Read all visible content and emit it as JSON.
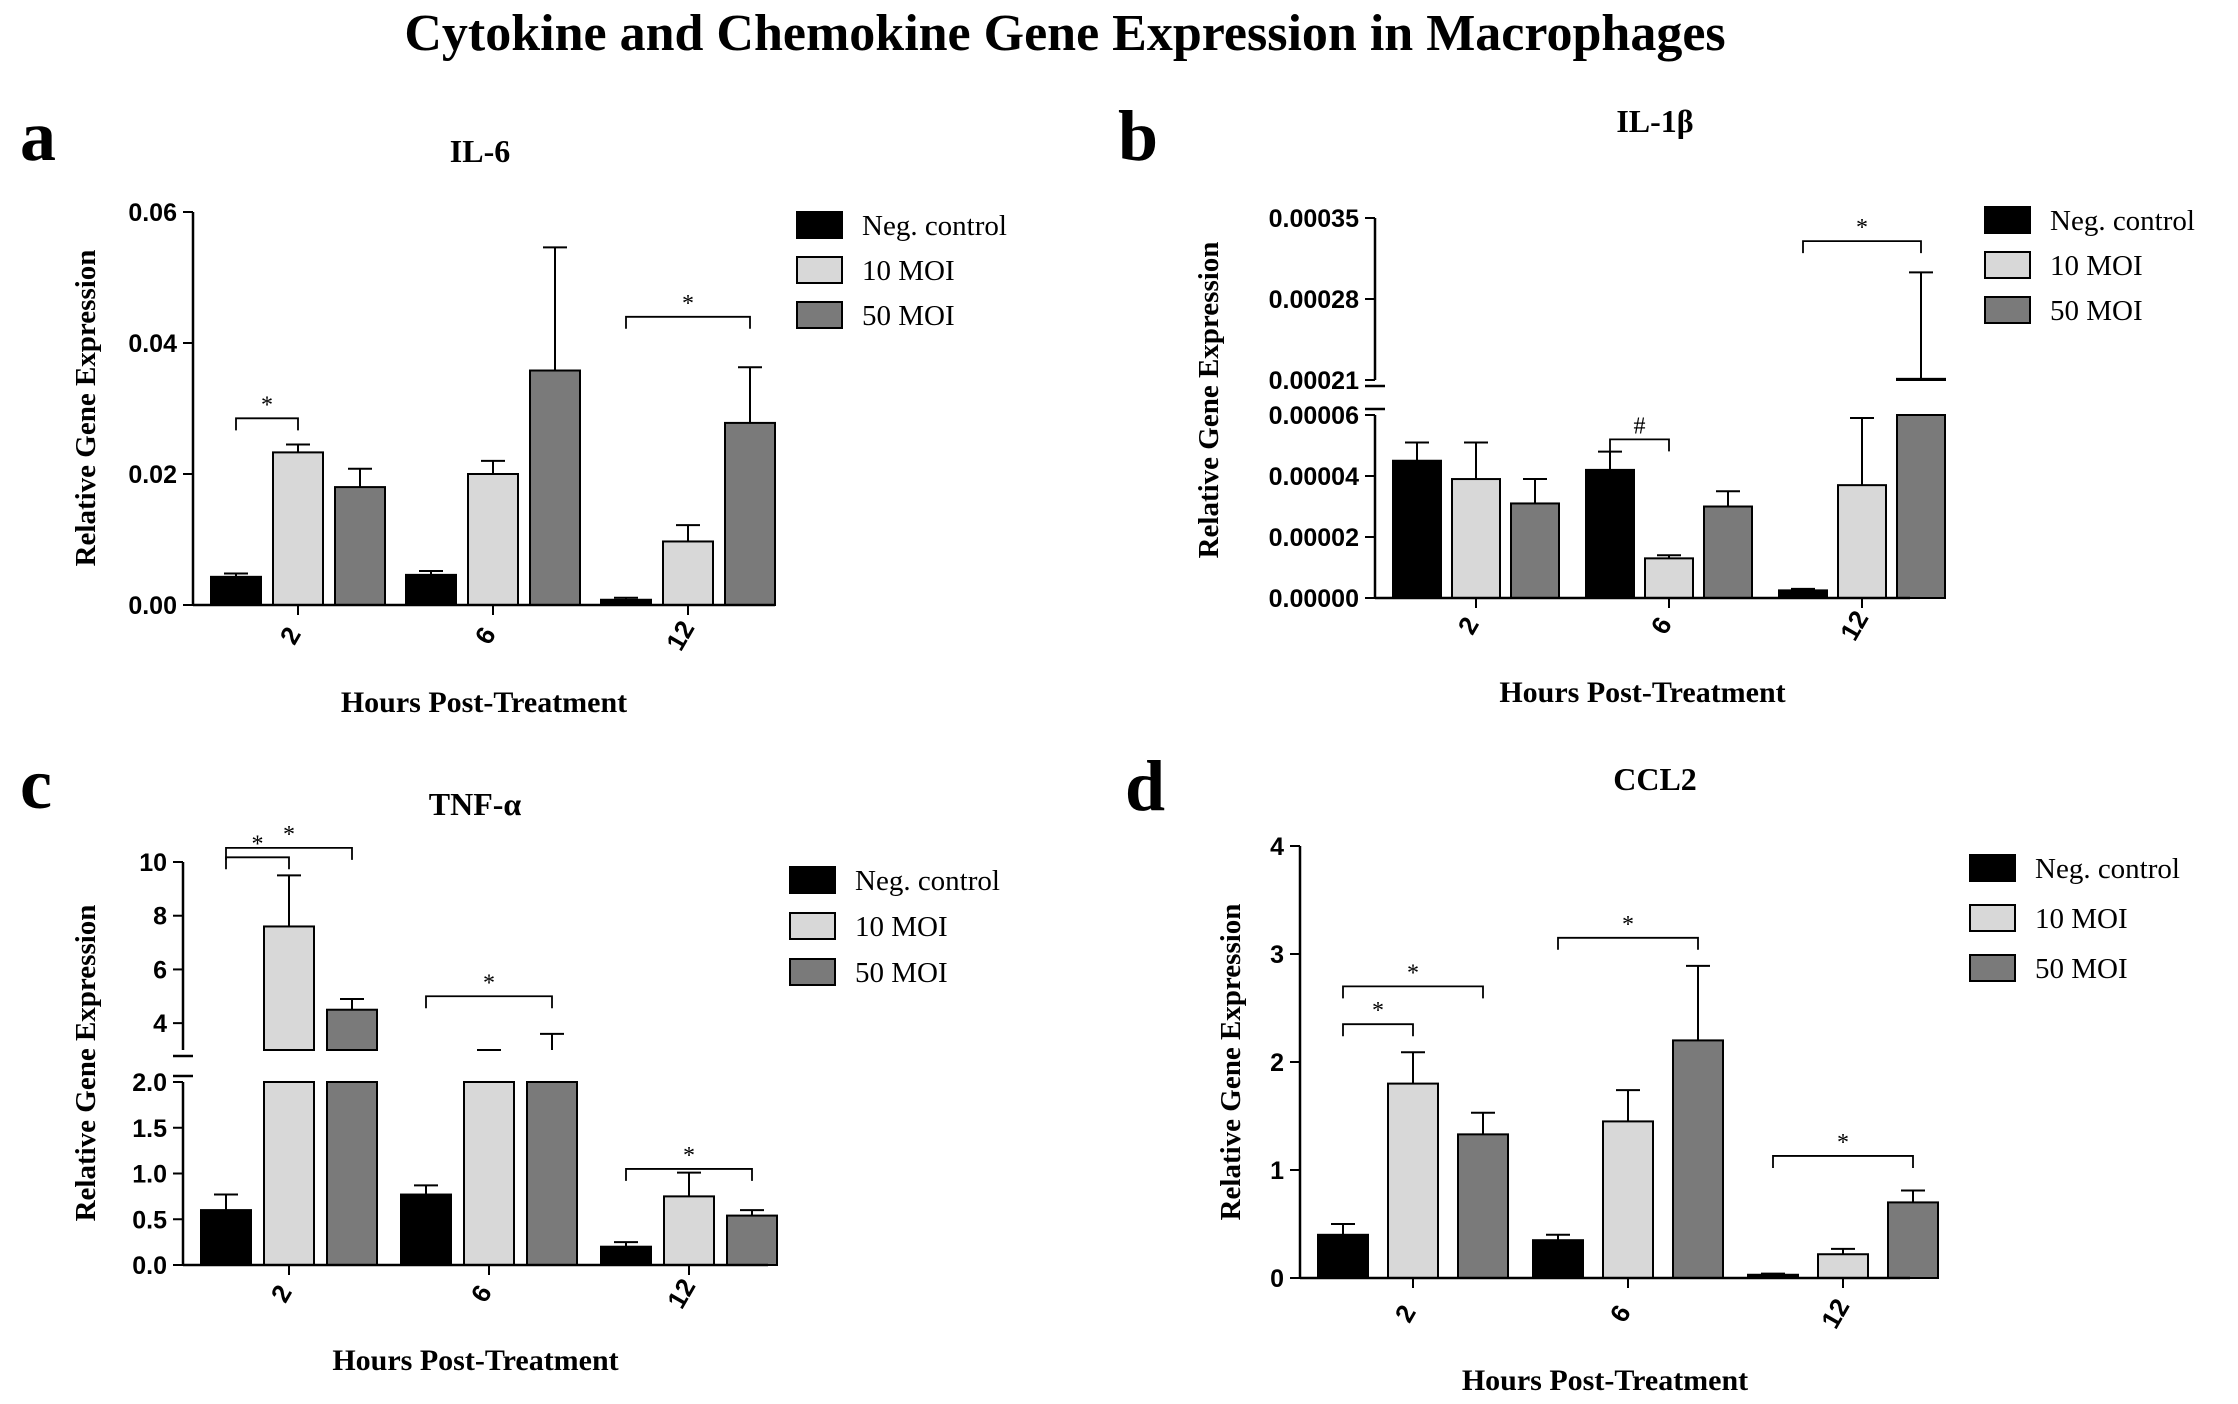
{
  "figure_title": "Cytokine and Chemokine Gene Expression in Macrophages",
  "legend_entries": [
    "Neg. control",
    "10 MOI",
    "50 MOI"
  ],
  "colors": {
    "neg": "#000000",
    "moi10": "#d8d8d8",
    "moi50": "#7a7a7a",
    "axis": "#000000"
  },
  "chart_data": [
    {
      "panel": "a",
      "type": "bar",
      "title": "IL-6",
      "xlabel": "Hours Post-Treatment",
      "ylabel": "Relative Gene Expression",
      "categories": [
        "2",
        "6",
        "12"
      ],
      "ylim": [
        0,
        0.06
      ],
      "yticks": [
        "0.00",
        "0.02",
        "0.04",
        "0.06"
      ],
      "series": [
        {
          "name": "Neg. control",
          "values": [
            0.0043,
            0.0046,
            0.0008
          ],
          "errors": [
            0.0005,
            0.0006,
            0.0003
          ]
        },
        {
          "name": "10 MOI",
          "values": [
            0.0233,
            0.02,
            0.0097
          ],
          "errors": [
            0.0012,
            0.002,
            0.0025
          ]
        },
        {
          "name": "50 MOI",
          "values": [
            0.018,
            0.0358,
            0.0278
          ],
          "errors": [
            0.0028,
            0.0188,
            0.0085
          ]
        }
      ],
      "significance": [
        {
          "label": "*",
          "category": "2",
          "from": "Neg. control",
          "to": "10 MOI",
          "y": 0.0285
        },
        {
          "label": "*",
          "category": "12",
          "from": "Neg. control",
          "to": "50 MOI",
          "y": 0.044
        }
      ]
    },
    {
      "panel": "b",
      "type": "bar",
      "title": "IL-1β",
      "xlabel": "Hours Post-Treatment",
      "ylabel": "Relative Gene Expression",
      "categories": [
        "2",
        "6",
        "12"
      ],
      "ylim": [
        0,
        0.00035
      ],
      "axis_break": {
        "lower": [
          0,
          6e-05
        ],
        "upper": [
          0.00021,
          0.00035
        ]
      },
      "yticks_lower": [
        "0.00000",
        "0.00002",
        "0.00004",
        "0.00006"
      ],
      "yticks_upper": [
        "0.00021",
        "0.00028",
        "0.00035"
      ],
      "series": [
        {
          "name": "Neg. control",
          "values": [
            4.5e-05,
            4.2e-05,
            2.5e-06
          ],
          "errors": [
            6e-06,
            6e-06,
            5e-07
          ]
        },
        {
          "name": "10 MOI",
          "values": [
            3.9e-05,
            1.3e-05,
            3.7e-05
          ],
          "errors": [
            1.2e-05,
            1e-06,
            2.2e-05
          ]
        },
        {
          "name": "50 MOI",
          "values": [
            3.1e-05,
            3e-05,
            0.000211
          ],
          "errors": [
            8e-06,
            5e-06,
            9.2e-05
          ]
        }
      ],
      "significance": [
        {
          "label": "#",
          "category": "6",
          "from": "Neg. control",
          "to": "10 MOI",
          "y": 5.2e-05
        },
        {
          "label": "*",
          "category": "12",
          "from": "Neg. control",
          "to": "50 MOI",
          "y": 0.00033
        }
      ]
    },
    {
      "panel": "c",
      "type": "bar",
      "title": "TNF-α",
      "xlabel": "Hours Post-Treatment",
      "ylabel": "Relative Gene Expression",
      "categories": [
        "2",
        "6",
        "12"
      ],
      "ylim": [
        0,
        10
      ],
      "axis_break": {
        "lower": [
          0,
          2.0
        ],
        "upper": [
          3,
          10
        ]
      },
      "yticks_lower": [
        "0.0",
        "0.5",
        "1.0",
        "1.5",
        "2.0"
      ],
      "yticks_upper": [
        "4",
        "6",
        "8",
        "10"
      ],
      "series": [
        {
          "name": "Neg. control",
          "values": [
            0.6,
            0.77,
            0.2
          ],
          "errors": [
            0.17,
            0.1,
            0.05
          ]
        },
        {
          "name": "10 MOI",
          "values": [
            7.6,
            2.5,
            0.75
          ],
          "errors": [
            1.9,
            0.3,
            0.26
          ]
        },
        {
          "name": "50 MOI",
          "values": [
            4.5,
            2.8,
            0.54
          ],
          "errors": [
            0.4,
            0.8,
            0.06
          ]
        }
      ],
      "significance": [
        {
          "label": "*",
          "category": "2",
          "from": "Neg. control",
          "to": "10 MOI",
          "y": 10.5
        },
        {
          "label": "*",
          "category": "2",
          "from": "Neg. control",
          "to": "50 MOI",
          "y": 11.5
        },
        {
          "label": "*",
          "category": "6",
          "from": "Neg. control",
          "to": "50 MOI",
          "y": 5.0
        },
        {
          "label": "*",
          "category": "12",
          "from": "Neg. control",
          "to": "50 MOI",
          "y": 1.05
        }
      ]
    },
    {
      "panel": "d",
      "type": "bar",
      "title": "CCL2",
      "xlabel": "Hours Post-Treatment",
      "ylabel": "Relative Gene Expression",
      "categories": [
        "2",
        "6",
        "12"
      ],
      "ylim": [
        0,
        4
      ],
      "yticks": [
        "0",
        "1",
        "2",
        "3",
        "4"
      ],
      "series": [
        {
          "name": "Neg. control",
          "values": [
            0.4,
            0.35,
            0.03
          ],
          "errors": [
            0.1,
            0.05,
            0.01
          ]
        },
        {
          "name": "10 MOI",
          "values": [
            1.8,
            1.45,
            0.22
          ],
          "errors": [
            0.29,
            0.29,
            0.05
          ]
        },
        {
          "name": "50 MOI",
          "values": [
            1.33,
            2.2,
            0.7
          ],
          "errors": [
            0.2,
            0.69,
            0.11
          ]
        }
      ],
      "significance": [
        {
          "label": "*",
          "category": "2",
          "from": "Neg. control",
          "to": "10 MOI",
          "y": 2.35
        },
        {
          "label": "*",
          "category": "2",
          "from": "Neg. control",
          "to": "50 MOI",
          "y": 2.7
        },
        {
          "label": "*",
          "category": "6",
          "from": "Neg. control",
          "to": "50 MOI",
          "y": 3.15
        },
        {
          "label": "*",
          "category": "12",
          "from": "Neg. control",
          "to": "50 MOI",
          "y": 1.13
        }
      ]
    }
  ]
}
